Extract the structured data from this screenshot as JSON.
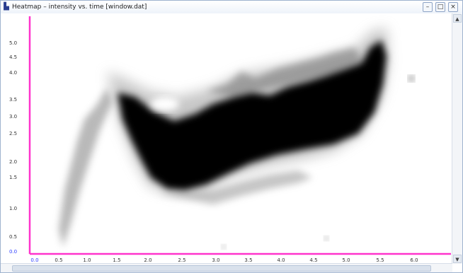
{
  "window": {
    "title": "Heatmap – intensity vs. time [window.dat]",
    "icon": "chart-app-icon",
    "minimize_label": "–",
    "maximize_label": "□",
    "close_label": "×"
  },
  "plot": {
    "axis_color": "#ff33cc",
    "ink_color": "#000000",
    "y_ticks": [
      "5.0",
      "4.5",
      "4.0",
      "3.5",
      "3.0",
      "2.5",
      "2.0",
      "1.5",
      "1.0",
      "0.5",
      "0.0"
    ],
    "x_ticks": [
      "0.0",
      "0.5",
      "1.0",
      "1.5",
      "2.0",
      "2.5",
      "3.0",
      "3.5",
      "4.0",
      "4.5",
      "5.0",
      "5.5",
      "6.0"
    ]
  },
  "scroll": {
    "up_arrow": "▲",
    "down_arrow": "▼"
  }
}
